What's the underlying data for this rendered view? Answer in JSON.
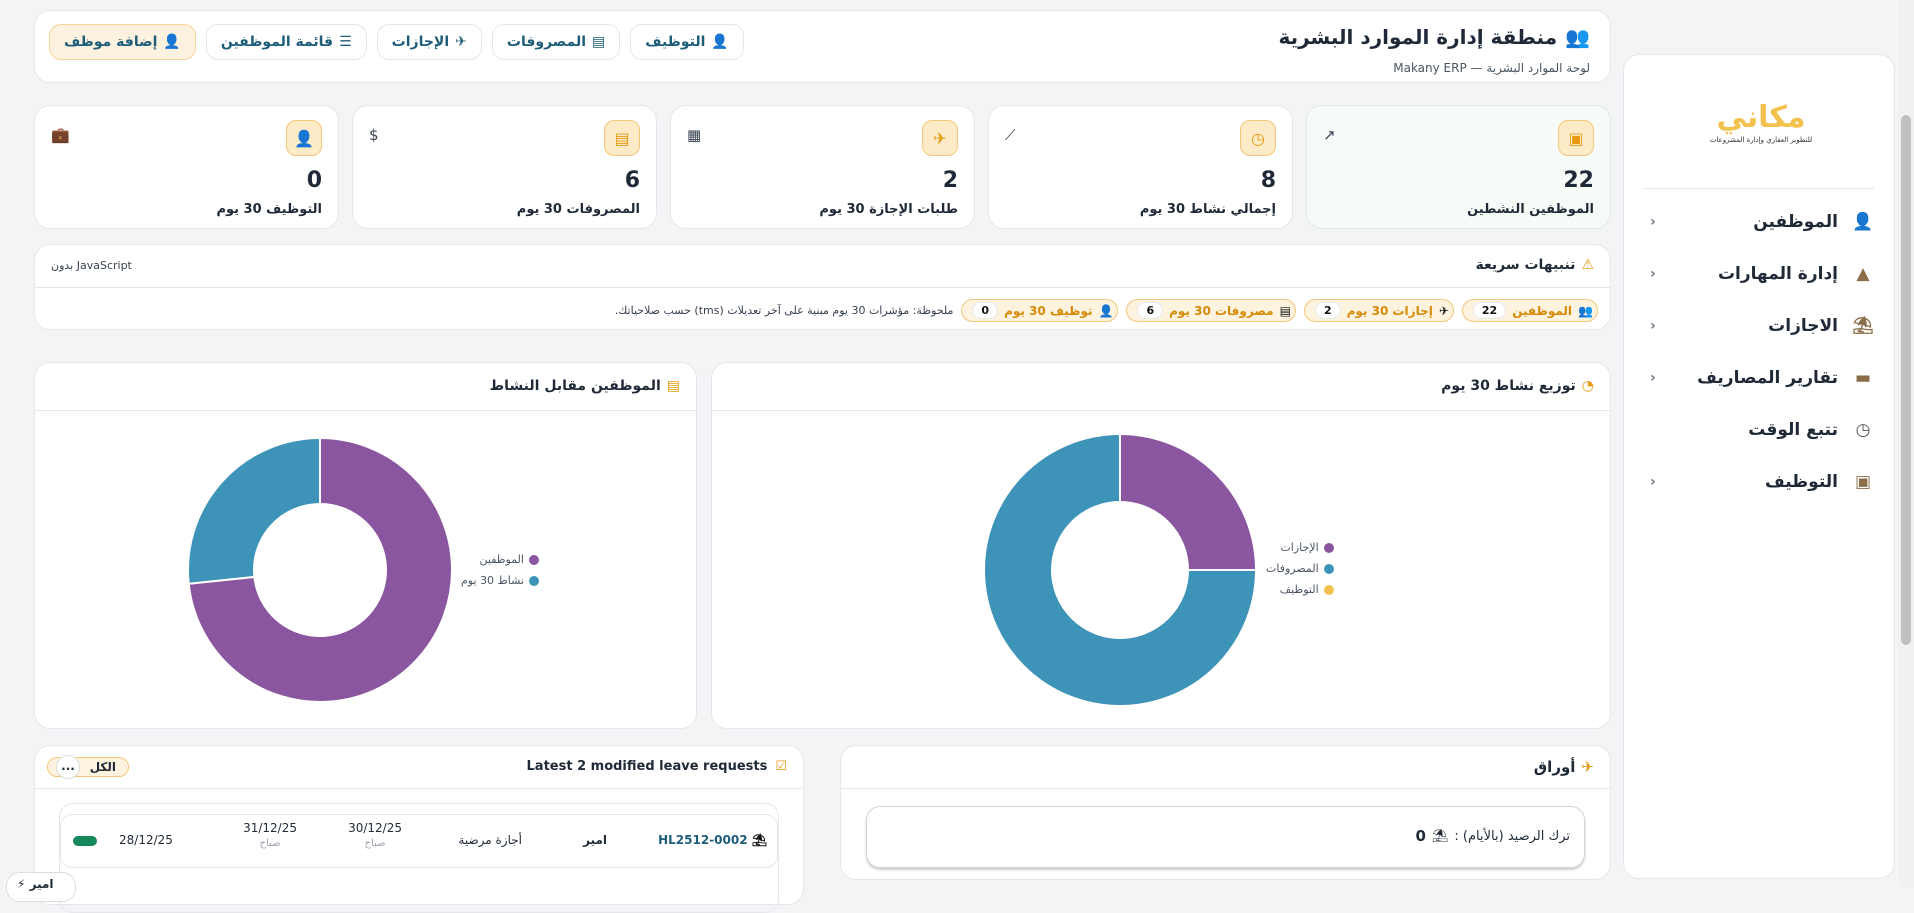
{
  "header": {
    "title": "منطقة إدارة الموارد البشرية",
    "subtitle": "لوحة الموارد البشرية — Makany ERP",
    "buttons": [
      {
        "label": "إضافة موظف",
        "icon": "user-plus-icon"
      },
      {
        "label": "قائمة الموظفين",
        "icon": "list-icon"
      },
      {
        "label": "الإجازات",
        "icon": "plane-icon"
      },
      {
        "label": "المصروفات",
        "icon": "receipt-icon"
      },
      {
        "label": "التوظيف",
        "icon": "user-tie-icon"
      }
    ]
  },
  "stats": [
    {
      "value": "22",
      "label": "الموظفين النشطين",
      "icon": "id-badge-icon",
      "corner_icon": "external-link-icon"
    },
    {
      "value": "8",
      "label": "إجمالي نشاط 30 يوم",
      "icon": "clock-icon",
      "corner_icon": "chart-line-icon"
    },
    {
      "value": "2",
      "label": "طلبات الإجازة 30 يوم",
      "icon": "plane-icon",
      "corner_icon": "calendar-icon"
    },
    {
      "value": "6",
      "label": "المصروفات 30 يوم",
      "icon": "receipt-icon",
      "corner_icon": "invoice-dollar-icon"
    },
    {
      "value": "0",
      "label": "التوظيف 30 يوم",
      "icon": "user-tie-icon",
      "corner_icon": "briefcase-icon"
    }
  ],
  "alerts": {
    "title": "تنبيهات سريعة",
    "no_js": "بدون JavaScript",
    "chips": [
      {
        "label": "الموظفين",
        "count": "22"
      },
      {
        "label": "إجازات 30 يوم",
        "count": "2"
      },
      {
        "label": "مصروفات 30 يوم",
        "count": "6"
      },
      {
        "label": "توظيف 30 يوم",
        "count": "0"
      }
    ],
    "note": "ملحوظة: مؤشرات 30 يوم مبنية على آخر تعديلات (tms) حسب صلاحياتك."
  },
  "chart_data": [
    {
      "type": "pie",
      "title": "توزيع نشاط 30 يوم",
      "categories": [
        "الإجازات",
        "المصروفات",
        "التوظيف"
      ],
      "values": [
        2,
        6,
        0
      ],
      "colors": [
        "#8b56a0",
        "#3d93b8",
        "#f2c14e"
      ],
      "donut": true,
      "legend": "right"
    },
    {
      "type": "pie",
      "title": "الموظفين مقابل النشاط",
      "categories": [
        "الموظفين",
        "نشاط 30 يوم"
      ],
      "values": [
        22,
        8
      ],
      "colors": [
        "#8b56a0",
        "#3d93b8"
      ],
      "donut": true,
      "legend": "right"
    }
  ],
  "papers": {
    "title": "أوراق",
    "balance_label": "ترك الرصيد (بالأيام) :",
    "balance_value": "0"
  },
  "leave": {
    "title": "Latest 2 modified leave requests",
    "filter": "الكل",
    "more": "...",
    "rows": [
      {
        "ref": "HL2512-0002",
        "employee": "امير",
        "type": "أجازة مرضية",
        "from": "30/12/25",
        "from_part": "صباح",
        "to": "31/12/25",
        "to_part": "صباح",
        "date": "28/12/25",
        "status_color": "#16875a"
      }
    ]
  },
  "floating": {
    "label": "امير"
  },
  "sidebar": {
    "logo_text": "مكاني",
    "logo_tagline": "للتطوير العقاري وإدارة المشروعات",
    "items": [
      {
        "label": "الموظفين",
        "icon": "user-icon"
      },
      {
        "label": "إدارة المهارات",
        "icon": "shapes-icon"
      },
      {
        "label": "الاجازات",
        "icon": "umbrella-beach-icon"
      },
      {
        "label": "تقارير المصاريف",
        "icon": "wallet-icon"
      },
      {
        "label": "تتبع الوقت",
        "icon": "clock-icon"
      },
      {
        "label": "التوظيف",
        "icon": "id-badge-icon"
      }
    ]
  }
}
